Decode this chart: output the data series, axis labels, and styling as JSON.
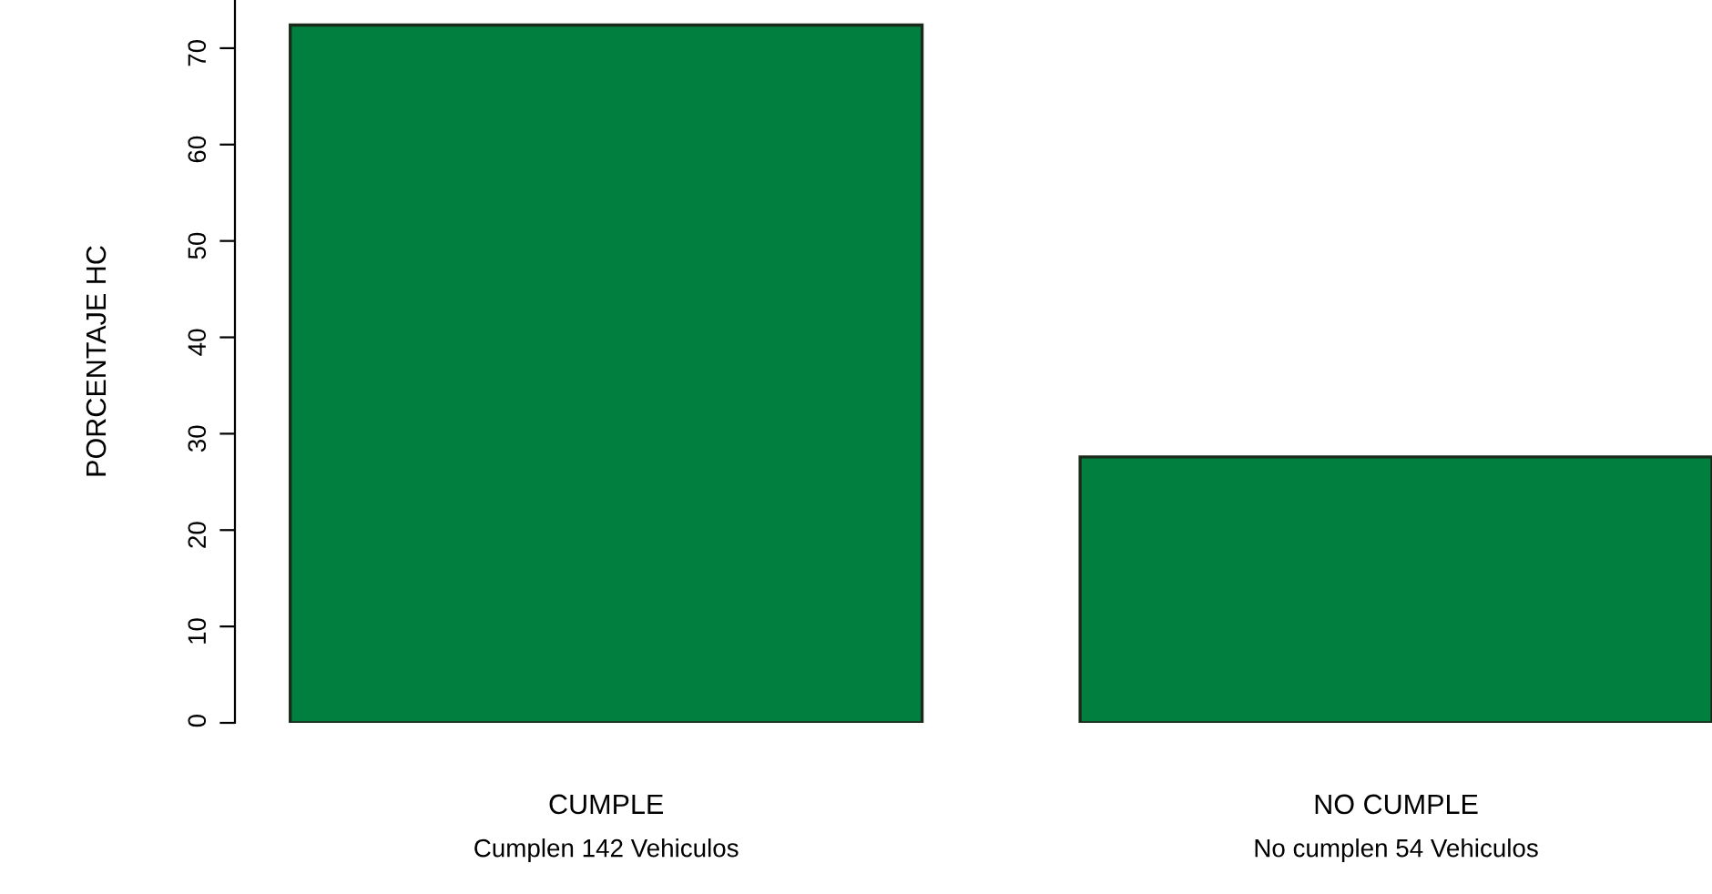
{
  "chart_data": {
    "type": "bar",
    "ylabel": "PORCENTAJE HC",
    "categories": [
      "CUMPLE",
      "NO CUMPLE"
    ],
    "values": [
      72.4,
      27.6
    ],
    "color": "#007f3f",
    "ylim": [
      0,
      75
    ],
    "yticks": [
      0,
      10,
      20,
      30,
      40,
      50,
      60,
      70
    ],
    "grid": false,
    "annotations": [
      "Cumplen 142 Vehiculos",
      "No cumplen 54 Vehiculos"
    ]
  }
}
